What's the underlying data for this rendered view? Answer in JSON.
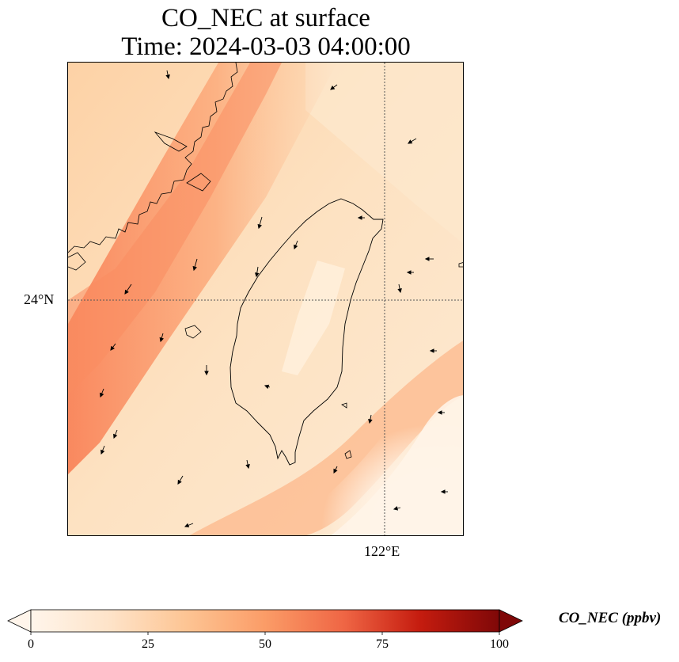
{
  "title_line1": "CO_NEC at surface",
  "title_line2": "Time: 2024-03-03 04:00:00",
  "axes": {
    "lat_label": "24°N",
    "lon_label": "122°E"
  },
  "colorbar": {
    "label": "CO_NEC (ppbv)",
    "ticks": [
      "0",
      "25",
      "50",
      "75",
      "100"
    ],
    "min": 0,
    "max": 100,
    "colormap": [
      "#fff5eb",
      "#fdd9b5",
      "#fdb27a",
      "#f57e4e",
      "#d43b1e",
      "#a50f15",
      "#6a0a06"
    ],
    "extend": "both"
  },
  "field": {
    "background_color": "#fde3c4",
    "plume_color": "#fb9a68",
    "clean_color": "#fff5eb"
  }
}
